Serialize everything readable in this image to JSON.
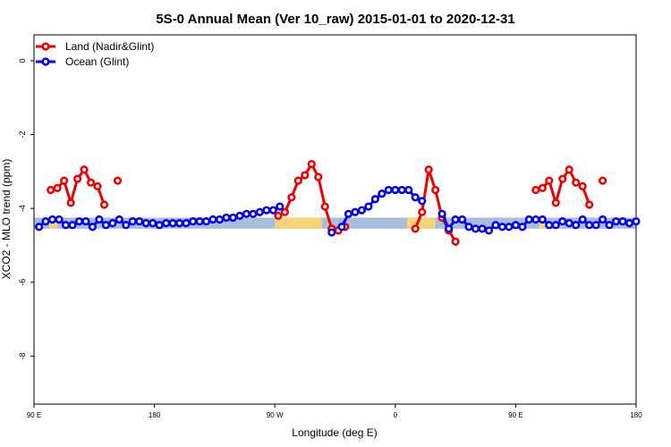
{
  "chart_data": {
    "type": "line",
    "title": "5S-0 Annual Mean (Ver 10_raw)   2015-01-01 to 2020-12-31",
    "xlabel": "Longitude (deg E)",
    "ylabel": "XCO2 - MLO trend (ppm)",
    "xlim": [
      90,
      450
    ],
    "ylim": [
      -9.3,
      0.7
    ],
    "x_ticks": [
      {
        "value": 90,
        "label": "90 E"
      },
      {
        "value": 162,
        "label": "180"
      },
      {
        "value": 234,
        "label": "90 W"
      },
      {
        "value": 306,
        "label": "0"
      },
      {
        "value": 378,
        "label": "90 E"
      },
      {
        "value": 450,
        "label": "180"
      }
    ],
    "y_ticks": [
      {
        "value": 0,
        "label": "0"
      },
      {
        "value": -2,
        "label": "-2"
      },
      {
        "value": -4,
        "label": "-4"
      },
      {
        "value": -6,
        "label": "-6"
      },
      {
        "value": -8,
        "label": "-8"
      }
    ],
    "grid": false,
    "legend_position": "top-left",
    "background_band": {
      "y_range": [
        -4.55,
        -4.25
      ],
      "ocean_color": "#A9BEDD",
      "land_color": "#F7D47A",
      "land_x_ranges": [
        [
          99,
          104
        ],
        [
          234,
          262
        ],
        [
          313,
          330
        ],
        [
          392,
          396
        ]
      ]
    },
    "series": [
      {
        "name": "Land (Nadir&Glint)",
        "color": "#EE0000",
        "points": [
          [
            100,
            -3.5
          ],
          [
            104,
            -3.45
          ],
          [
            108,
            -3.25
          ],
          [
            112,
            -3.85
          ],
          [
            116,
            -3.2
          ],
          [
            120,
            -2.95
          ],
          [
            124,
            -3.3
          ],
          [
            128,
            -3.4
          ],
          [
            132,
            -3.9
          ],
          null,
          [
            140,
            -3.25
          ],
          null,
          [
            236,
            -4.2
          ],
          [
            240,
            -4.1
          ],
          [
            244,
            -3.7
          ],
          [
            248,
            -3.25
          ],
          [
            252,
            -3.1
          ],
          [
            256,
            -2.8
          ],
          [
            260,
            -3.15
          ],
          [
            264,
            -3.95
          ],
          [
            268,
            -4.55
          ],
          [
            272,
            -4.6
          ],
          [
            276,
            -4.5
          ],
          null,
          [
            318,
            -4.55
          ],
          [
            322,
            -4.1
          ],
          [
            326,
            -2.95
          ],
          [
            330,
            -3.5
          ],
          [
            334,
            -4.25
          ],
          [
            338,
            -4.6
          ],
          [
            342,
            -4.9
          ],
          null,
          [
            390,
            -3.5
          ],
          [
            394,
            -3.45
          ],
          [
            398,
            -3.25
          ],
          [
            402,
            -3.85
          ],
          [
            406,
            -3.2
          ],
          [
            410,
            -2.95
          ],
          [
            414,
            -3.3
          ],
          [
            418,
            -3.4
          ],
          [
            422,
            -3.9
          ],
          null,
          [
            430,
            -3.25
          ]
        ]
      },
      {
        "name": "Ocean (Glint)",
        "color": "#0000EE",
        "points": [
          [
            93,
            -4.5
          ],
          [
            97,
            -4.35
          ],
          [
            101,
            -4.3
          ],
          [
            105,
            -4.3
          ],
          [
            109,
            -4.45
          ],
          [
            113,
            -4.45
          ],
          [
            117,
            -4.35
          ],
          [
            121,
            -4.35
          ],
          [
            125,
            -4.5
          ],
          [
            129,
            -4.3
          ],
          [
            133,
            -4.45
          ],
          [
            137,
            -4.4
          ],
          [
            141,
            -4.3
          ],
          [
            145,
            -4.45
          ],
          [
            149,
            -4.35
          ],
          [
            153,
            -4.35
          ],
          [
            157,
            -4.4
          ],
          [
            161,
            -4.4
          ],
          [
            165,
            -4.45
          ],
          [
            169,
            -4.4
          ],
          [
            173,
            -4.4
          ],
          [
            177,
            -4.4
          ],
          [
            181,
            -4.4
          ],
          [
            185,
            -4.35
          ],
          [
            189,
            -4.35
          ],
          [
            193,
            -4.35
          ],
          [
            197,
            -4.3
          ],
          [
            201,
            -4.3
          ],
          [
            205,
            -4.25
          ],
          [
            209,
            -4.25
          ],
          [
            213,
            -4.2
          ],
          [
            217,
            -4.15
          ],
          [
            221,
            -4.15
          ],
          [
            225,
            -4.1
          ],
          [
            229,
            -4.05
          ],
          [
            233,
            -4.05
          ],
          [
            237,
            -3.95
          ],
          null,
          [
            268,
            -4.65
          ],
          null,
          [
            274,
            -4.5
          ],
          [
            278,
            -4.15
          ],
          [
            282,
            -4.1
          ],
          [
            286,
            -4.05
          ],
          [
            290,
            -3.95
          ],
          [
            294,
            -3.75
          ],
          [
            298,
            -3.6
          ],
          [
            302,
            -3.5
          ],
          [
            306,
            -3.5
          ],
          [
            310,
            -3.5
          ],
          [
            314,
            -3.5
          ],
          [
            318,
            -3.7
          ],
          [
            322,
            -3.8
          ],
          null,
          [
            334,
            -4.15
          ],
          [
            338,
            -4.55
          ],
          [
            342,
            -4.3
          ],
          [
            346,
            -4.3
          ],
          [
            350,
            -4.5
          ],
          [
            354,
            -4.55
          ],
          [
            358,
            -4.55
          ],
          [
            362,
            -4.6
          ],
          [
            366,
            -4.45
          ],
          [
            370,
            -4.5
          ],
          [
            374,
            -4.5
          ],
          [
            378,
            -4.45
          ],
          [
            382,
            -4.5
          ],
          [
            386,
            -4.3
          ],
          [
            390,
            -4.3
          ],
          [
            394,
            -4.3
          ],
          [
            398,
            -4.45
          ],
          [
            402,
            -4.45
          ],
          [
            406,
            -4.35
          ],
          [
            410,
            -4.4
          ],
          [
            414,
            -4.45
          ],
          [
            418,
            -4.3
          ],
          [
            422,
            -4.45
          ],
          [
            426,
            -4.45
          ],
          [
            430,
            -4.3
          ],
          [
            434,
            -4.45
          ],
          [
            438,
            -4.35
          ],
          [
            442,
            -4.35
          ],
          [
            446,
            -4.4
          ],
          [
            450,
            -4.35
          ]
        ]
      }
    ]
  }
}
